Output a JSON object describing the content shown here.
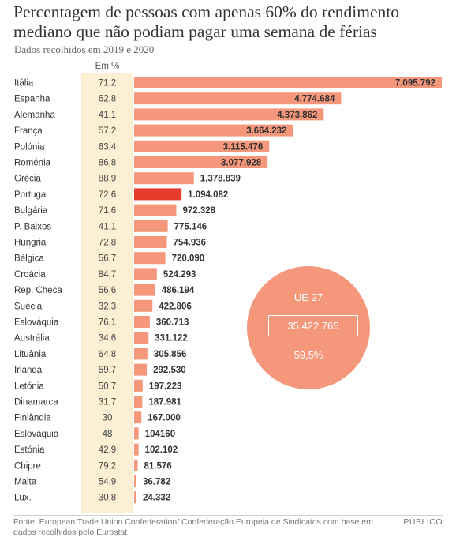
{
  "title": "Percentagem de pessoas com apenas 60% do rendimento mediano que não podiam pagar uma semana de férias",
  "subtitle": "Dados recolhidos em 2019 e 2020",
  "pct_header": "Em %",
  "colors": {
    "bar": "#f4977a",
    "highlight": "#e63c2e",
    "pct_column": "#fcefd4"
  },
  "chart_data": {
    "type": "bar",
    "orientation": "horizontal",
    "highlight": "Portugal",
    "rows": [
      {
        "country": "Itália",
        "pct": "71,2",
        "value": 7095792,
        "label": "7.095.792"
      },
      {
        "country": "Espanha",
        "pct": "62,8",
        "value": 4774684,
        "label": "4.774.684"
      },
      {
        "country": "Alemanha",
        "pct": "41,1",
        "value": 4373862,
        "label": "4.373.862"
      },
      {
        "country": "França",
        "pct": "57,2",
        "value": 3664232,
        "label": "3.664.232"
      },
      {
        "country": "Polónia",
        "pct": "63,4",
        "value": 3115476,
        "label": "3.115.476"
      },
      {
        "country": "Roménia",
        "pct": "86,8",
        "value": 3077928,
        "label": "3.077.928"
      },
      {
        "country": "Grécia",
        "pct": "88,9",
        "value": 1378839,
        "label": "1.378.839"
      },
      {
        "country": "Portugal",
        "pct": "72,6",
        "value": 1094082,
        "label": "1.094.082"
      },
      {
        "country": "Bulgária",
        "pct": "71,6",
        "value": 972328,
        "label": "972.328"
      },
      {
        "country": "P. Baixos",
        "pct": "41,1",
        "value": 775146,
        "label": "775.146"
      },
      {
        "country": "Hungria",
        "pct": "72,8",
        "value": 754936,
        "label": "754.936"
      },
      {
        "country": "Bélgica",
        "pct": "56,7",
        "value": 720090,
        "label": "720.090"
      },
      {
        "country": "Croácia",
        "pct": "84,7",
        "value": 524293,
        "label": "524.293"
      },
      {
        "country": "Rep. Checa",
        "pct": "56,6",
        "value": 486194,
        "label": "486.194"
      },
      {
        "country": "Suécia",
        "pct": "32,3",
        "value": 422806,
        "label": "422.806"
      },
      {
        "country": "Eslováquia",
        "pct": "76,1",
        "value": 360713,
        "label": "360.713"
      },
      {
        "country": "Austrália",
        "pct": "34,6",
        "value": 331122,
        "label": "331.122"
      },
      {
        "country": "Lituânia",
        "pct": "64,8",
        "value": 305856,
        "label": "305.856"
      },
      {
        "country": "Irlanda",
        "pct": "59,7",
        "value": 292530,
        "label": "292.530"
      },
      {
        "country": "Letónia",
        "pct": "50,7",
        "value": 197223,
        "label": "197.223"
      },
      {
        "country": "Dinamarca",
        "pct": "31,7",
        "value": 187981,
        "label": "187.981"
      },
      {
        "country": "Finlândia",
        "pct": "30",
        "value": 167000,
        "label": "167.000"
      },
      {
        "country": "Eslováquia",
        "pct": "48",
        "value": 104160,
        "label": "104160"
      },
      {
        "country": "Estónia",
        "pct": "42,9",
        "value": 102102,
        "label": "102.102"
      },
      {
        "country": "Chipre",
        "pct": "79,2",
        "value": 81576,
        "label": "81.576"
      },
      {
        "country": "Malta",
        "pct": "54,9",
        "value": 36782,
        "label": "36.782"
      },
      {
        "country": "Lux.",
        "pct": "30,8",
        "value": 24332,
        "label": "24.332"
      }
    ],
    "eu_total": {
      "name": "UE 27",
      "value": "35.422.765",
      "pct": "59,5%"
    }
  },
  "source": "Fonte: European Trade Union Confederation/ Confederação Europeia de Sindicatos com base em dados recolhidos pelo Eurostat",
  "credit": "PÚBLICO"
}
